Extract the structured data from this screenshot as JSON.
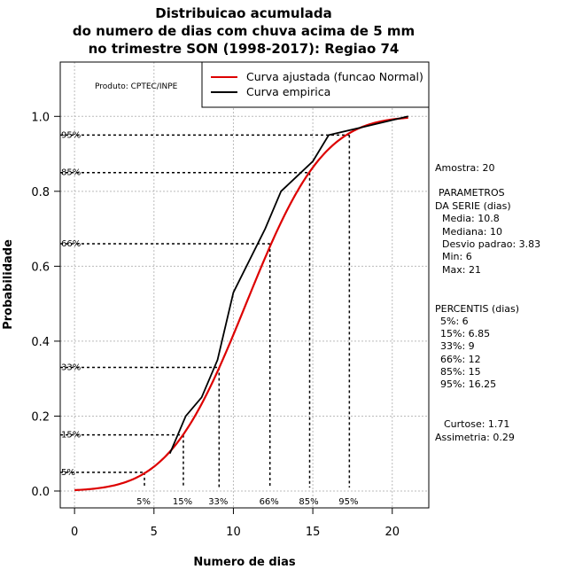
{
  "chart_data": {
    "type": "line",
    "title": [
      "Distribuicao acumulada",
      "do numero de dias com chuva acima de 5 mm",
      "no trimestre SON (1998-2017): Regiao 74"
    ],
    "xlabel": "Numero de dias",
    "ylabel": "Probabilidade",
    "xlim": [
      -0.9,
      22.3
    ],
    "ylim": [
      -0.045,
      1.145
    ],
    "x_ticks": [
      0,
      5,
      10,
      15,
      20
    ],
    "x_tick_labels": [
      "0",
      "5",
      "10",
      "15",
      "20"
    ],
    "y_ticks": [
      0.0,
      0.2,
      0.4,
      0.6,
      0.8,
      1.0
    ],
    "y_tick_labels": [
      "0.0",
      "0.2",
      "0.4",
      "0.6",
      "0.8",
      "1.0"
    ],
    "grid": true,
    "legend_position": "top-right",
    "series": [
      {
        "name": "Curva ajustada (funcao Normal)",
        "color": "#dd0000",
        "fit": "normal",
        "mean": 10.8,
        "sd": 3.83,
        "x_range": [
          0,
          21
        ]
      },
      {
        "name": "Curva empirica",
        "color": "#000000",
        "x": [
          6,
          7,
          8,
          9,
          10,
          12,
          13,
          15,
          16,
          18,
          21
        ],
        "y": [
          0.1,
          0.2,
          0.25,
          0.35,
          0.53,
          0.7,
          0.8,
          0.88,
          0.95,
          0.97,
          1.0
        ]
      }
    ],
    "percentiles": [
      {
        "label": "5%",
        "p": 0.05,
        "x": 4.4
      },
      {
        "label": "15%",
        "p": 0.15,
        "x": 6.85
      },
      {
        "label": "33%",
        "p": 0.33,
        "x": 9.1
      },
      {
        "label": "66%",
        "p": 0.66,
        "x": 12.3
      },
      {
        "label": "85%",
        "p": 0.85,
        "x": 14.8
      },
      {
        "label": "95%",
        "p": 0.95,
        "x": 17.3
      }
    ],
    "annotation": "Produto: CPTEC/INPE"
  },
  "stats_panel": {
    "lines": [
      "Amostra: 20",
      "PARAMETROS",
      "DA SERIE (dias)",
      "Media: 10.8",
      "Mediana: 10",
      "Desvio padrao: 3.83",
      "Min: 6",
      "Max: 21",
      "PERCENTIS (dias)",
      "5%: 6",
      "15%: 6.85",
      "33%: 9",
      "66%: 12",
      "85%: 15",
      "95%: 16.25",
      "Curtose: 1.71",
      "Assimetria: 0.29"
    ]
  }
}
